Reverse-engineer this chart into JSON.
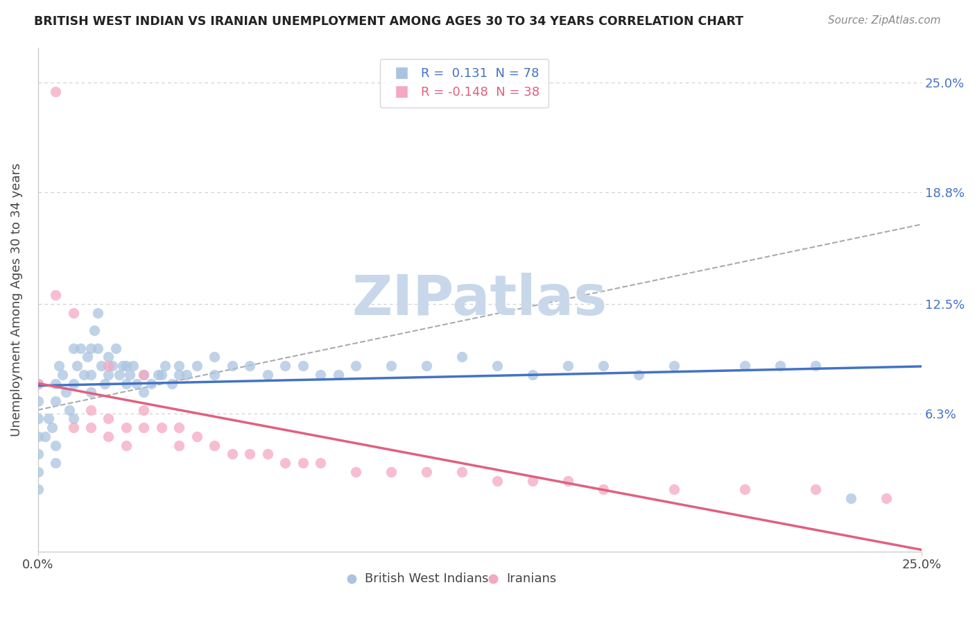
{
  "title": "BRITISH WEST INDIAN VS IRANIAN UNEMPLOYMENT AMONG AGES 30 TO 34 YEARS CORRELATION CHART",
  "source": "Source: ZipAtlas.com",
  "ylabel": "Unemployment Among Ages 30 to 34 years",
  "xlim": [
    0.0,
    0.25
  ],
  "ylim": [
    -0.015,
    0.27
  ],
  "xtick_positions": [
    0.0,
    0.25
  ],
  "xtick_labels": [
    "0.0%",
    "25.0%"
  ],
  "ytick_values": [
    0.063,
    0.125,
    0.188,
    0.25
  ],
  "ytick_labels": [
    "6.3%",
    "12.5%",
    "18.8%",
    "25.0%"
  ],
  "legend1_label": "R =  0.131  N = 78",
  "legend2_label": "R = -0.148  N = 38",
  "series1_color": "#aac4e0",
  "series2_color": "#f4a8c0",
  "trend1_color": "#4472c4",
  "trend2_color": "#e06080",
  "ref_line_color": "#aaaaaa",
  "watermark": "ZIPatlas",
  "watermark_color": "#c8d8ea",
  "background_color": "#ffffff",
  "grid_color": "#cccccc",
  "bwi_x": [
    0.0,
    0.0,
    0.0,
    0.0,
    0.0,
    0.0,
    0.0,
    0.002,
    0.003,
    0.004,
    0.005,
    0.005,
    0.005,
    0.005,
    0.006,
    0.007,
    0.008,
    0.009,
    0.01,
    0.01,
    0.01,
    0.011,
    0.012,
    0.013,
    0.014,
    0.015,
    0.015,
    0.015,
    0.016,
    0.017,
    0.017,
    0.018,
    0.019,
    0.02,
    0.02,
    0.021,
    0.022,
    0.023,
    0.024,
    0.025,
    0.025,
    0.026,
    0.027,
    0.028,
    0.03,
    0.03,
    0.032,
    0.034,
    0.035,
    0.036,
    0.038,
    0.04,
    0.04,
    0.042,
    0.045,
    0.05,
    0.05,
    0.055,
    0.06,
    0.065,
    0.07,
    0.075,
    0.08,
    0.085,
    0.09,
    0.1,
    0.11,
    0.12,
    0.13,
    0.14,
    0.15,
    0.16,
    0.17,
    0.18,
    0.2,
    0.21,
    0.22,
    0.23
  ],
  "bwi_y": [
    0.05,
    0.04,
    0.06,
    0.07,
    0.08,
    0.03,
    0.02,
    0.05,
    0.06,
    0.055,
    0.07,
    0.08,
    0.045,
    0.035,
    0.09,
    0.085,
    0.075,
    0.065,
    0.1,
    0.08,
    0.06,
    0.09,
    0.1,
    0.085,
    0.095,
    0.075,
    0.085,
    0.1,
    0.11,
    0.1,
    0.12,
    0.09,
    0.08,
    0.085,
    0.095,
    0.09,
    0.1,
    0.085,
    0.09,
    0.08,
    0.09,
    0.085,
    0.09,
    0.08,
    0.075,
    0.085,
    0.08,
    0.085,
    0.085,
    0.09,
    0.08,
    0.09,
    0.085,
    0.085,
    0.09,
    0.095,
    0.085,
    0.09,
    0.09,
    0.085,
    0.09,
    0.09,
    0.085,
    0.085,
    0.09,
    0.09,
    0.09,
    0.095,
    0.09,
    0.085,
    0.09,
    0.09,
    0.085,
    0.09,
    0.09,
    0.09,
    0.09,
    0.015
  ],
  "iranian_x": [
    0.005,
    0.0,
    0.01,
    0.015,
    0.015,
    0.02,
    0.02,
    0.025,
    0.025,
    0.03,
    0.03,
    0.035,
    0.04,
    0.04,
    0.045,
    0.05,
    0.055,
    0.06,
    0.065,
    0.07,
    0.075,
    0.08,
    0.09,
    0.1,
    0.11,
    0.12,
    0.13,
    0.14,
    0.15,
    0.16,
    0.18,
    0.2,
    0.22,
    0.24,
    0.005,
    0.01,
    0.02,
    0.03
  ],
  "iranian_y": [
    0.245,
    0.08,
    0.055,
    0.065,
    0.055,
    0.06,
    0.05,
    0.045,
    0.055,
    0.065,
    0.055,
    0.055,
    0.055,
    0.045,
    0.05,
    0.045,
    0.04,
    0.04,
    0.04,
    0.035,
    0.035,
    0.035,
    0.03,
    0.03,
    0.03,
    0.03,
    0.025,
    0.025,
    0.025,
    0.02,
    0.02,
    0.02,
    0.02,
    0.015,
    0.13,
    0.12,
    0.09,
    0.085
  ]
}
